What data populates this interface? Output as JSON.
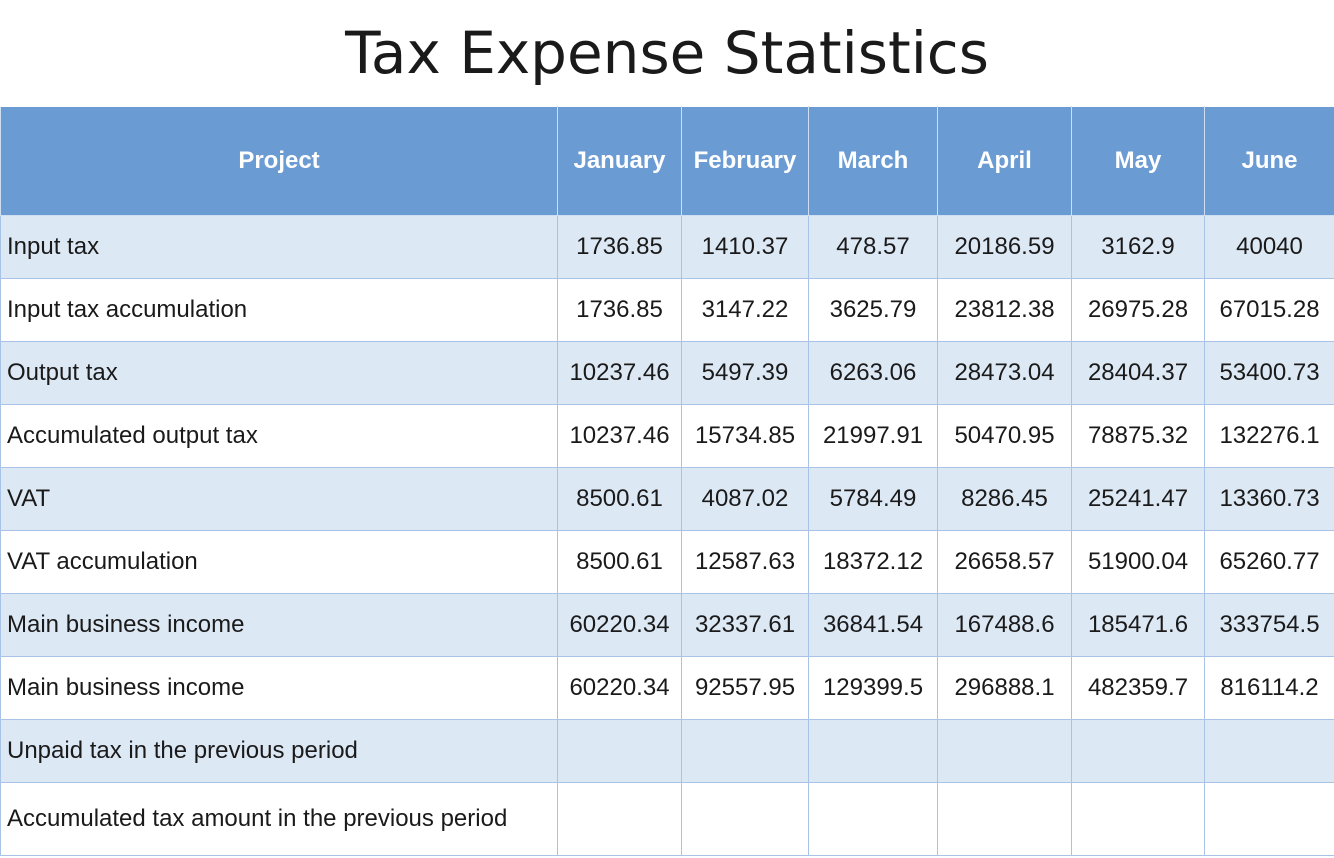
{
  "title": "Tax Expense Statistics",
  "headers": [
    "Project",
    "January",
    "February",
    "March",
    "April",
    "May",
    "June"
  ],
  "rows": [
    {
      "label": "Input tax",
      "values": [
        "1736.85",
        "1410.37",
        "478.57",
        "20186.59",
        "3162.9",
        "40040"
      ]
    },
    {
      "label": "Input tax accumulation",
      "values": [
        "1736.85",
        "3147.22",
        "3625.79",
        "23812.38",
        "26975.28",
        "67015.28"
      ]
    },
    {
      "label": "Output tax",
      "values": [
        "10237.46",
        "5497.39",
        "6263.06",
        "28473.04",
        "28404.37",
        "53400.73"
      ]
    },
    {
      "label": "Accumulated output tax",
      "values": [
        "10237.46",
        "15734.85",
        "21997.91",
        "50470.95",
        "78875.32",
        "132276.1"
      ]
    },
    {
      "label": "VAT",
      "values": [
        "8500.61",
        "4087.02",
        "5784.49",
        "8286.45",
        "25241.47",
        "13360.73"
      ]
    },
    {
      "label": "VAT accumulation",
      "values": [
        "8500.61",
        "12587.63",
        "18372.12",
        "26658.57",
        "51900.04",
        "65260.77"
      ]
    },
    {
      "label": "Main business income",
      "values": [
        "60220.34",
        "32337.61",
        "36841.54",
        "167488.6",
        "185471.6",
        "333754.5"
      ]
    },
    {
      "label": "Main business income",
      "values": [
        "60220.34",
        "92557.95",
        "129399.5",
        "296888.1",
        "482359.7",
        "816114.2"
      ]
    },
    {
      "label": "Unpaid tax in the previous period",
      "values": [
        "",
        "",
        "",
        "",
        "",
        ""
      ]
    },
    {
      "label": "Accumulated tax amount in the previous period",
      "values": [
        "",
        "",
        "",
        "",
        "",
        ""
      ]
    }
  ],
  "colors": {
    "header_bg": "#6b9bd3",
    "header_text": "#ffffff",
    "band_bg": "#dde8f5",
    "grid": "#a9c3e6"
  }
}
